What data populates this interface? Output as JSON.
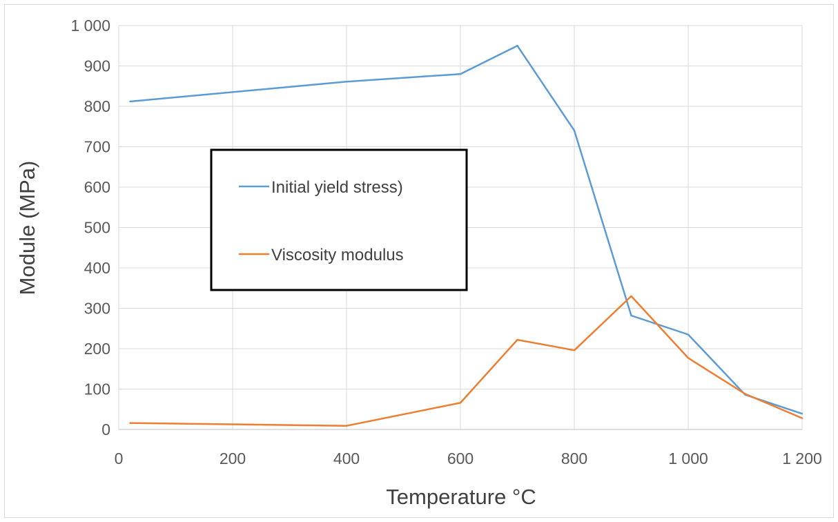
{
  "chart_data": {
    "type": "line",
    "title": "",
    "xlabel": "Temperature °C",
    "ylabel": "Module (MPa)",
    "xlim": [
      0,
      1200
    ],
    "ylim": [
      0,
      1000
    ],
    "x_ticks": [
      "0",
      "200",
      "400",
      "600",
      "800",
      "1 000",
      "1 200"
    ],
    "y_ticks": [
      "0",
      "100",
      "200",
      "300",
      "400",
      "500",
      "600",
      "700",
      "800",
      "900",
      "1 000"
    ],
    "grid": true,
    "legend_position": "left-center",
    "series": [
      {
        "name": "Initial yield stress)",
        "color": "#5b9bd5",
        "x": [
          20,
          400,
          600,
          700,
          800,
          900,
          1000,
          1100,
          1200
        ],
        "y": [
          812,
          861,
          880,
          950,
          740,
          282,
          235,
          86,
          39
        ]
      },
      {
        "name": "Viscosity modulus",
        "color": "#ed7d31",
        "x": [
          20,
          400,
          600,
          700,
          800,
          900,
          1000,
          1100,
          1200
        ],
        "y": [
          16,
          9,
          66,
          222,
          196,
          330,
          177,
          88,
          28
        ]
      }
    ]
  }
}
